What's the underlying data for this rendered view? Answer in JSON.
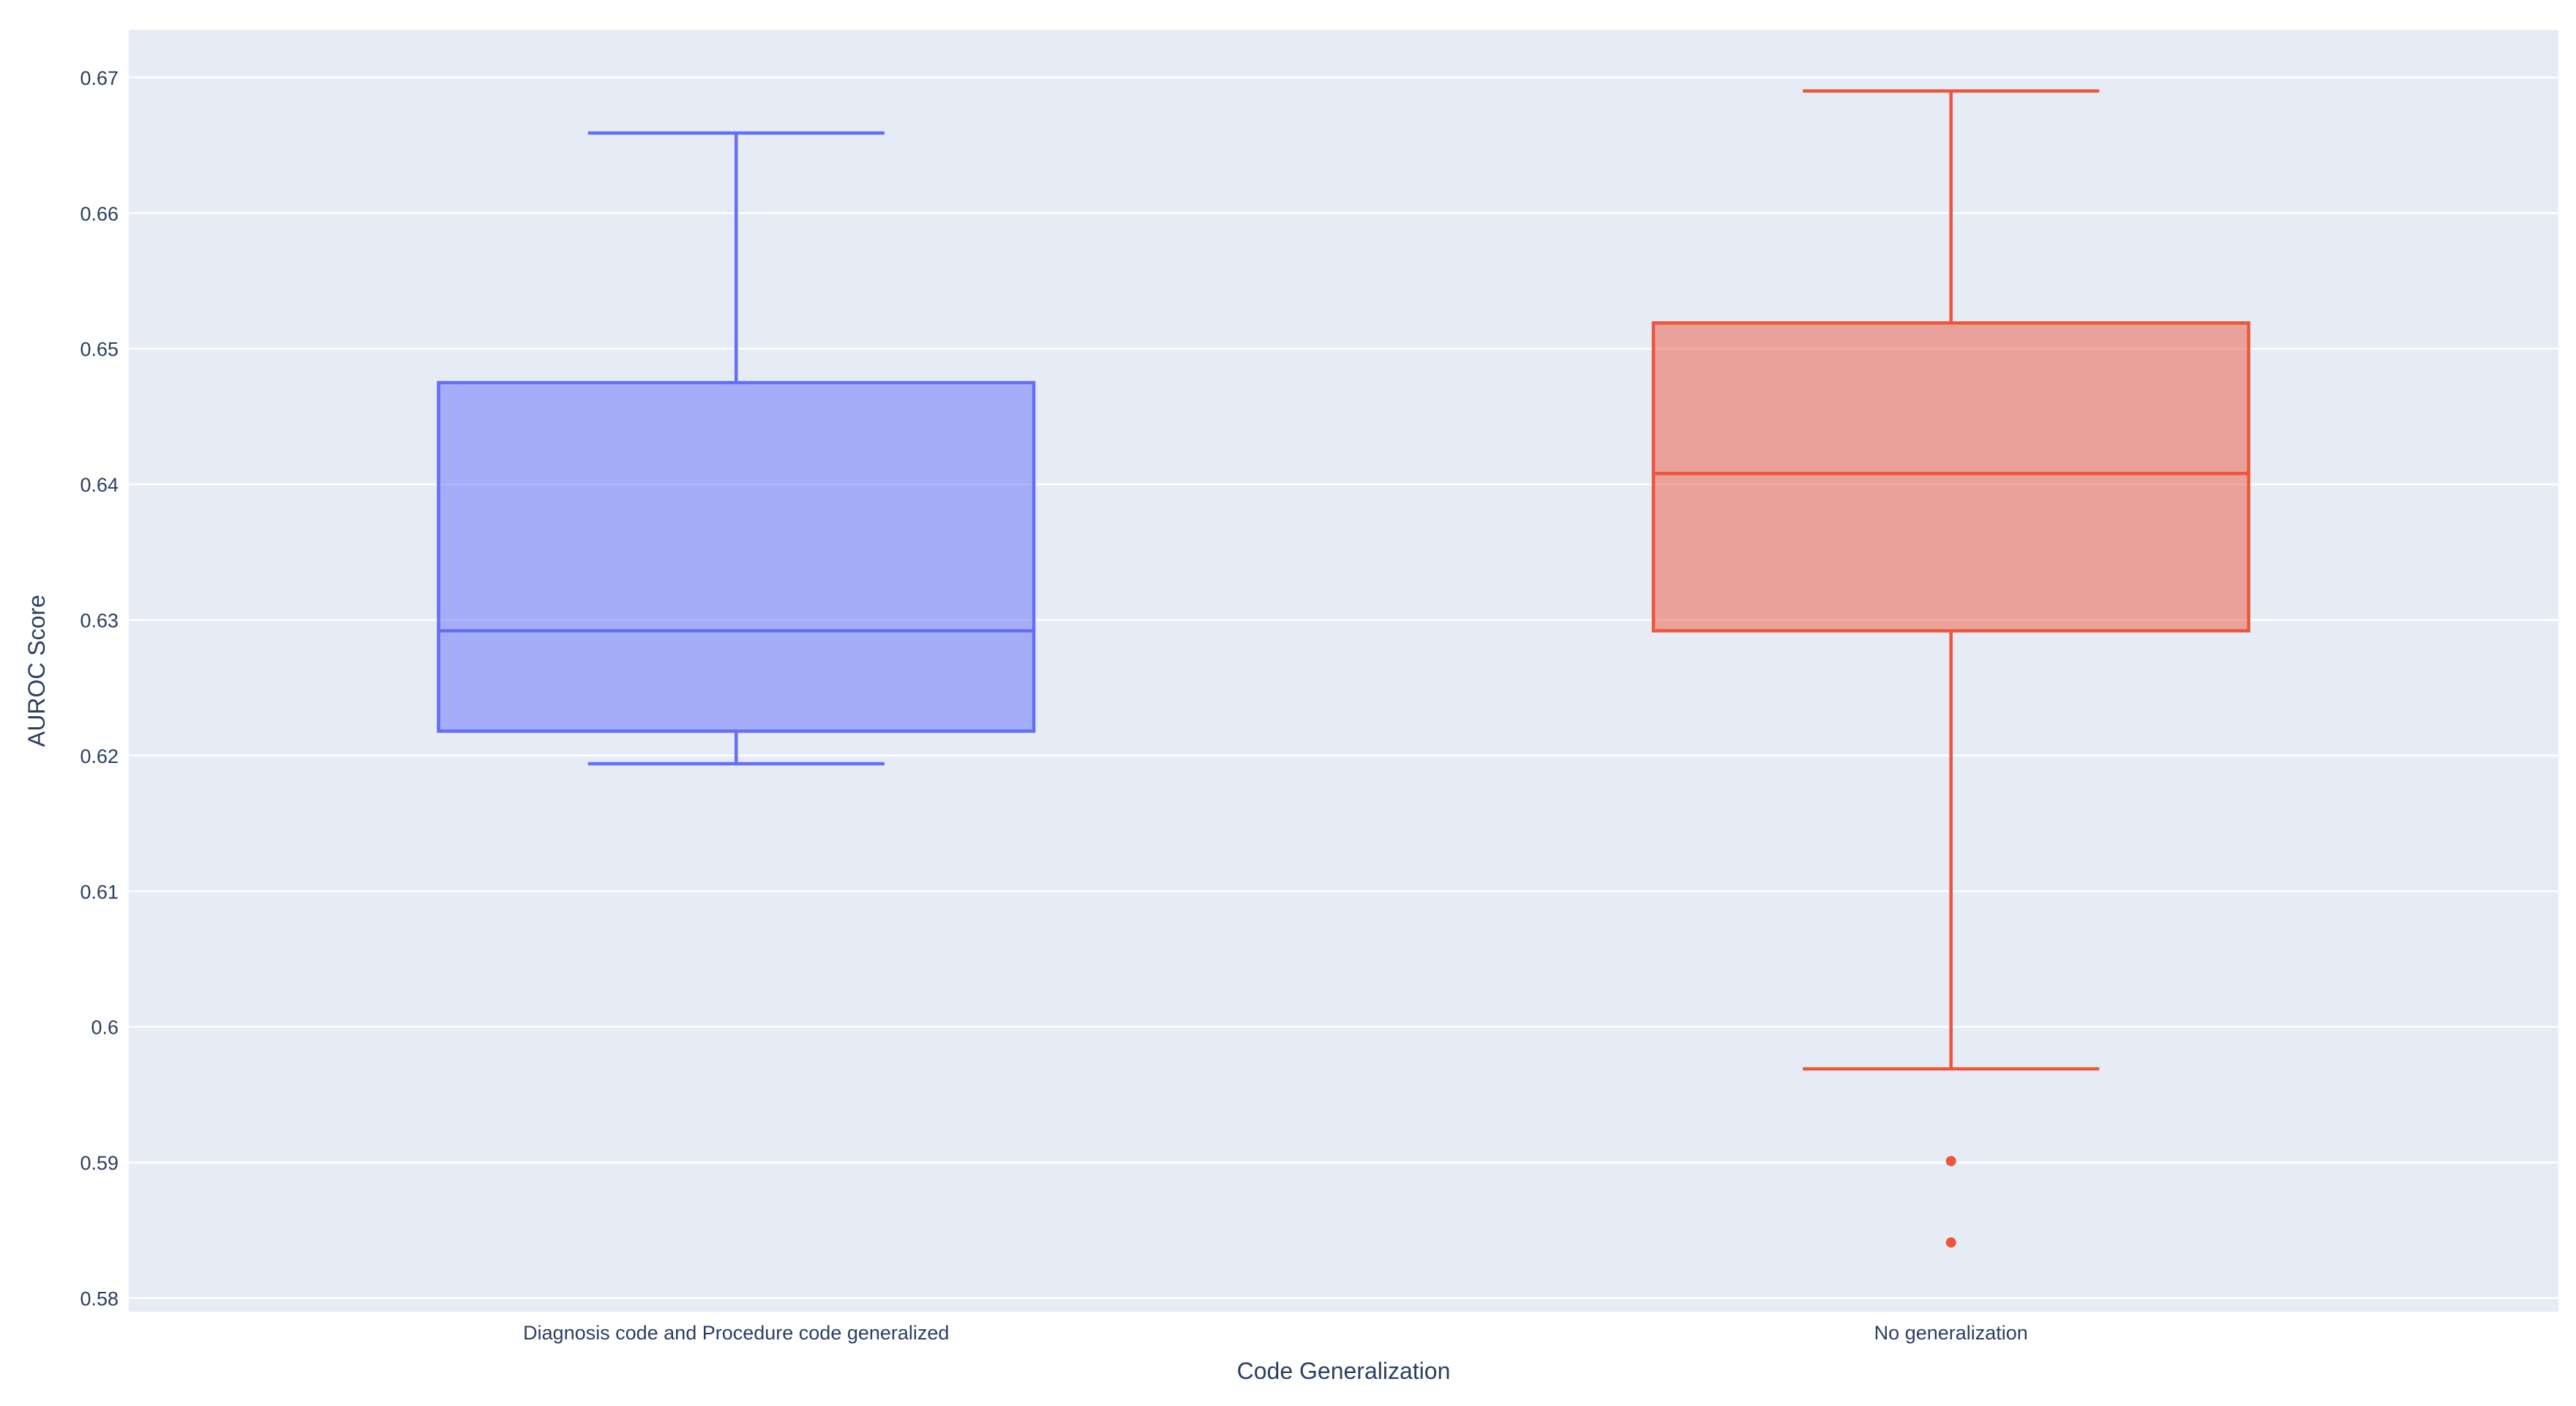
{
  "chart_data": {
    "type": "box",
    "xlabel": "Code Generalization",
    "ylabel": "AUROC Score",
    "ylim": [
      0.579,
      0.6735
    ],
    "yticks": [
      0.58,
      0.59,
      0.6,
      0.61,
      0.62,
      0.63,
      0.64,
      0.65,
      0.66,
      0.67
    ],
    "ytick_labels": [
      "0.58",
      "0.59",
      "0.6",
      "0.61",
      "0.62",
      "0.63",
      "0.64",
      "0.65",
      "0.66",
      "0.67"
    ],
    "categories": [
      "Diagnosis code and Procedure code generalized",
      "No generalization"
    ],
    "grid": true,
    "legend": "none",
    "series": [
      {
        "category": "Diagnosis code and Procedure code generalized",
        "color": "#636efa",
        "lower_whisker": 0.6194,
        "q1": 0.6218,
        "median": 0.6292,
        "q3": 0.6475,
        "upper_whisker": 0.6659,
        "outliers": []
      },
      {
        "category": "No generalization",
        "color": "#ef553b",
        "lower_whisker": 0.5969,
        "q1": 0.6292,
        "median": 0.6408,
        "q3": 0.6519,
        "upper_whisker": 0.669,
        "outliers": [
          0.5901,
          0.5841
        ]
      }
    ]
  }
}
